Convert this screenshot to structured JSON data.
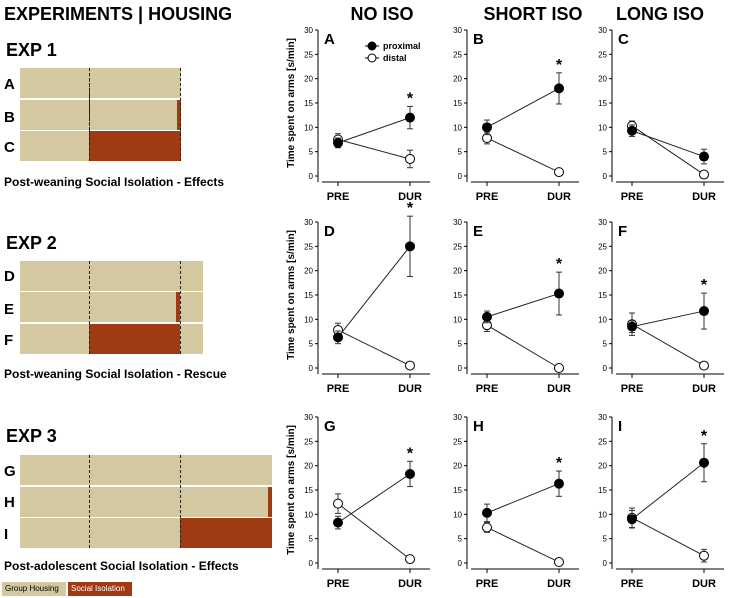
{
  "header": {
    "experiments": "EXPERIMENTS",
    "divider": "|",
    "housing": "HOUSING"
  },
  "columns": [
    "NO ISO",
    "SHORT ISO",
    "LONG ISO"
  ],
  "experiments": [
    {
      "title": "EXP 1",
      "rows": [
        "A",
        "B",
        "C"
      ],
      "caption": "Post-weaning Social Isolation - Effects"
    },
    {
      "title": "EXP 2",
      "rows": [
        "D",
        "E",
        "F"
      ],
      "caption": "Post-weaning Social Isolation - Rescue"
    },
    {
      "title": "EXP 3",
      "rows": [
        "G",
        "H",
        "I"
      ],
      "caption": "Post-adolescent Social Isolation - Effects"
    }
  ],
  "legend": {
    "group": "Group Housing",
    "iso": "Social Isolation",
    "group_color": "#d4c8a0",
    "iso_color": "#9f3a12"
  },
  "colors": {
    "group_housing": "#d4c8a0",
    "social_isolation": "#9f3a12"
  },
  "chart_data": {
    "type": "line",
    "ylabel": "Time spent on arms [s/min]",
    "categories": [
      "PRE",
      "DUR"
    ],
    "ylim": [
      0,
      30
    ],
    "yticks": [
      0,
      5,
      10,
      15,
      20,
      25,
      30
    ],
    "significance_marker": "*",
    "legend_labels": [
      "proximal",
      "distal"
    ],
    "panels": [
      {
        "label": "A",
        "proximal": [
          6.8,
          12.0
        ],
        "proximal_err": [
          1.0,
          2.3
        ],
        "distal": [
          7.5,
          3.5
        ],
        "distal_err": [
          1.2,
          1.8
        ],
        "sig": true
      },
      {
        "label": "B",
        "proximal": [
          10.0,
          18.0
        ],
        "proximal_err": [
          1.5,
          3.2
        ],
        "distal": [
          7.8,
          0.8
        ],
        "distal_err": [
          1.2,
          0.4
        ],
        "sig": true
      },
      {
        "label": "C",
        "proximal": [
          9.3,
          4.0
        ],
        "proximal_err": [
          1.2,
          1.5
        ],
        "distal": [
          10.3,
          0.3
        ],
        "distal_err": [
          1.0,
          0.5
        ],
        "sig": false
      },
      {
        "label": "D",
        "proximal": [
          6.3,
          25.0
        ],
        "proximal_err": [
          1.3,
          6.2
        ],
        "distal": [
          7.8,
          0.5
        ],
        "distal_err": [
          1.4,
          0.4
        ],
        "sig": true
      },
      {
        "label": "E",
        "proximal": [
          10.5,
          15.3
        ],
        "proximal_err": [
          1.2,
          4.4
        ],
        "distal": [
          8.8,
          0.0
        ],
        "distal_err": [
          1.3,
          0.3
        ],
        "sig": true
      },
      {
        "label": "F",
        "proximal": [
          8.5,
          11.7
        ],
        "proximal_err": [
          1.2,
          3.7
        ],
        "distal": [
          9.0,
          0.5
        ],
        "distal_err": [
          2.3,
          0.4
        ],
        "sig": true
      },
      {
        "label": "G",
        "proximal": [
          8.3,
          18.3
        ],
        "proximal_err": [
          1.3,
          2.6
        ],
        "distal": [
          12.2,
          0.8
        ],
        "distal_err": [
          2.0,
          0.4
        ],
        "sig": true
      },
      {
        "label": "H",
        "proximal": [
          10.3,
          16.3
        ],
        "proximal_err": [
          1.8,
          2.6
        ],
        "distal": [
          7.3,
          0.2
        ],
        "distal_err": [
          1.0,
          0.4
        ],
        "sig": true
      },
      {
        "label": "I",
        "proximal": [
          9.0,
          20.6
        ],
        "proximal_err": [
          1.8,
          3.9
        ],
        "distal": [
          9.3,
          1.5
        ],
        "distal_err": [
          2.0,
          1.3
        ],
        "sig": true
      }
    ]
  }
}
